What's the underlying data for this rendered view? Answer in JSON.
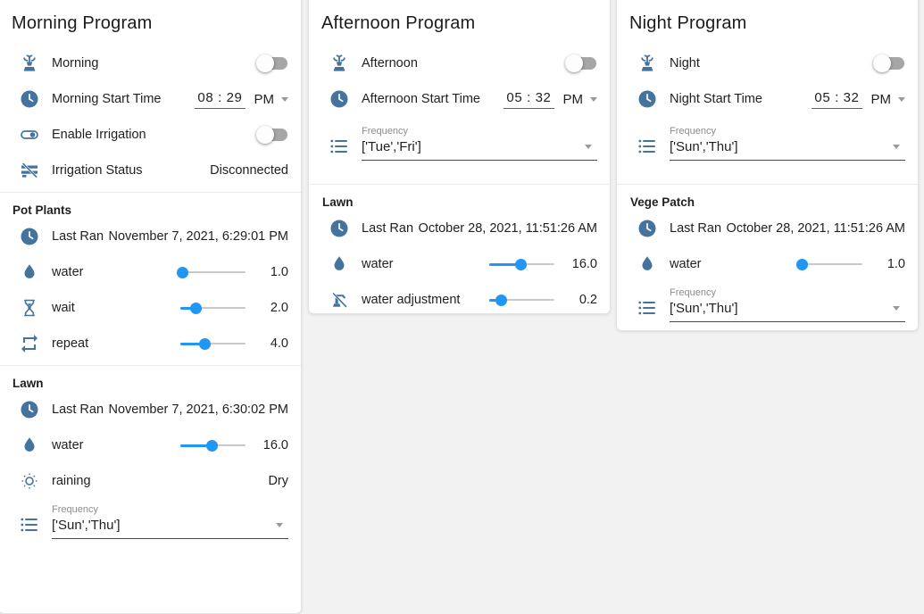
{
  "colors": {
    "icon_accent": "#44739e",
    "slider_accent": "#2196f3",
    "card_bg": "#ffffff",
    "page_bg": "#f2f2f2"
  },
  "icons": {
    "program": "fountain-icon",
    "start_time": "clock-icon",
    "enable": "toggle-switch-icon",
    "irrigation_status": "sprinkler-off-icon",
    "last_ran": "clock-icon",
    "water": "water-drop-icon",
    "wait": "hourglass-icon",
    "repeat": "repeat-icon",
    "raining": "sun-icon",
    "frequency": "list-icon",
    "water_adjustment": "water-pump-off-icon"
  },
  "morning": {
    "title": "Morning Program",
    "toggle": {
      "label": "Morning",
      "on": false
    },
    "start_time": {
      "label": "Morning Start Time",
      "time": "08 : 29",
      "meridiem": "PM"
    },
    "enable_irrigation": {
      "label": "Enable Irrigation",
      "on": false
    },
    "irrigation_status": {
      "label": "Irrigation Status",
      "value": "Disconnected"
    },
    "pot_plants": {
      "header": "Pot Plants",
      "last_ran": {
        "label": "Last Ran",
        "value": "November 7, 2021, 6:29:01 PM"
      },
      "water": {
        "label": "water",
        "value": "1.0",
        "percent": 3
      },
      "wait": {
        "label": "wait",
        "value": "2.0",
        "percent": 24
      },
      "repeat": {
        "label": "repeat",
        "value": "4.0",
        "percent": 38
      }
    },
    "lawn": {
      "header": "Lawn",
      "last_ran": {
        "label": "Last Ran",
        "value": "November 7, 2021, 6:30:02 PM"
      },
      "water": {
        "label": "water",
        "value": "16.0",
        "percent": 48
      },
      "raining": {
        "label": "raining",
        "value": "Dry"
      },
      "frequency": {
        "label": "Frequency",
        "value": "['Sun','Thu']"
      }
    }
  },
  "afternoon": {
    "title": "Afternoon Program",
    "toggle": {
      "label": "Afternoon",
      "on": false
    },
    "start_time": {
      "label": "Afternoon Start Time",
      "time": "05 : 32",
      "meridiem": "PM"
    },
    "frequency": {
      "label": "Frequency",
      "value": "['Tue','Fri']"
    },
    "lawn": {
      "header": "Lawn",
      "last_ran": {
        "label": "Last Ran",
        "value": "October 28, 2021, 11:51:26 AM"
      },
      "water": {
        "label": "water",
        "value": "16.0",
        "percent": 48
      },
      "water_adjustment": {
        "label": "water adjustment",
        "value": "0.2",
        "percent": 18
      }
    }
  },
  "night": {
    "title": "Night Program",
    "toggle": {
      "label": "Night",
      "on": false
    },
    "start_time": {
      "label": "Night Start Time",
      "time": "05 : 32",
      "meridiem": "PM"
    },
    "frequency": {
      "label": "Frequency",
      "value": "['Sun','Thu']"
    },
    "vege_patch": {
      "header": "Vege Patch",
      "last_ran": {
        "label": "Last Ran",
        "value": "October 28, 2021, 11:51:26 AM"
      },
      "water": {
        "label": "water",
        "value": "1.0",
        "percent": 8
      },
      "frequency": {
        "label": "Frequency",
        "value": "['Sun','Thu']"
      }
    }
  }
}
